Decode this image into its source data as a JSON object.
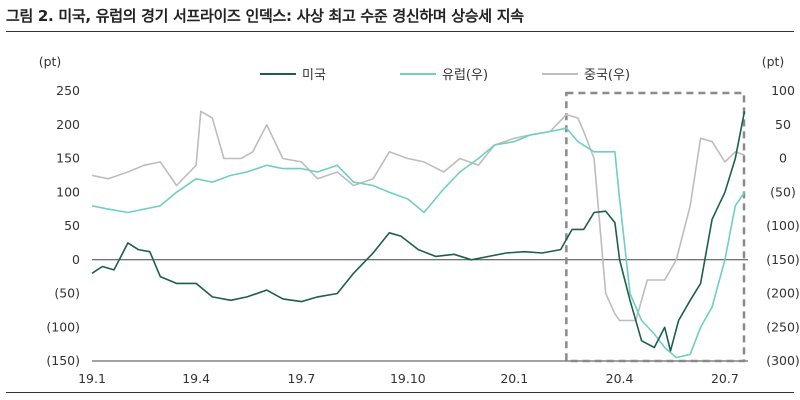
{
  "title": "그림 2. 미국, 유럽의 경기 서프라이즈 인덱스: 사상 최고 수준 경신하며 상승세 지속",
  "chart_data": {
    "type": "line",
    "y_left_unit": "(pt)",
    "y_right_unit": "(pt)",
    "x_ticks": [
      "19.1",
      "19.4",
      "19.7",
      "19.10",
      "20.1",
      "20.4",
      "20.7"
    ],
    "y_left_ticks": [
      "250",
      "200",
      "150",
      "100",
      "50",
      "0",
      "(50)",
      "(100)",
      "(150)"
    ],
    "y_right_ticks": [
      "100",
      "50",
      "0",
      "(50)",
      "(100)",
      "(150)",
      "(200)",
      "(250)",
      "(300)"
    ],
    "y_left_range": [
      -150,
      250
    ],
    "y_right_range": [
      -300,
      100
    ],
    "x_range": [
      "2019-01-01",
      "2020-07-21"
    ],
    "grid": false,
    "legend_position": "top",
    "highlight_box": {
      "x_from": "2020-02-15",
      "x_to": "2020-07-21",
      "style": "dashed"
    },
    "series": [
      {
        "name": "미국",
        "axis": "left",
        "color": "#1d5f4f",
        "points": [
          [
            "2019-01-01",
            -20
          ],
          [
            "2019-01-10",
            -10
          ],
          [
            "2019-01-20",
            -15
          ],
          [
            "2019-02-01",
            25
          ],
          [
            "2019-02-10",
            15
          ],
          [
            "2019-02-20",
            12
          ],
          [
            "2019-03-01",
            -25
          ],
          [
            "2019-03-15",
            -35
          ],
          [
            "2019-04-01",
            -35
          ],
          [
            "2019-04-15",
            -55
          ],
          [
            "2019-05-01",
            -60
          ],
          [
            "2019-05-15",
            -55
          ],
          [
            "2019-06-01",
            -45
          ],
          [
            "2019-06-15",
            -58
          ],
          [
            "2019-07-01",
            -62
          ],
          [
            "2019-07-15",
            -55
          ],
          [
            "2019-08-01",
            -50
          ],
          [
            "2019-08-15",
            -20
          ],
          [
            "2019-09-01",
            10
          ],
          [
            "2019-09-15",
            40
          ],
          [
            "2019-09-25",
            35
          ],
          [
            "2019-10-10",
            15
          ],
          [
            "2019-10-25",
            5
          ],
          [
            "2019-11-10",
            8
          ],
          [
            "2019-11-25",
            0
          ],
          [
            "2019-12-10",
            5
          ],
          [
            "2019-12-25",
            10
          ],
          [
            "2020-01-10",
            12
          ],
          [
            "2020-01-25",
            10
          ],
          [
            "2020-02-10",
            15
          ],
          [
            "2020-02-20",
            45
          ],
          [
            "2020-03-01",
            45
          ],
          [
            "2020-03-10",
            70
          ],
          [
            "2020-03-20",
            72
          ],
          [
            "2020-03-28",
            55
          ],
          [
            "2020-04-01",
            0
          ],
          [
            "2020-04-10",
            -60
          ],
          [
            "2020-04-20",
            -120
          ],
          [
            "2020-05-01",
            -130
          ],
          [
            "2020-05-10",
            -100
          ],
          [
            "2020-05-15",
            -135
          ],
          [
            "2020-05-22",
            -90
          ],
          [
            "2020-06-01",
            -60
          ],
          [
            "2020-06-10",
            -35
          ],
          [
            "2020-06-20",
            60
          ],
          [
            "2020-07-01",
            100
          ],
          [
            "2020-07-10",
            150
          ],
          [
            "2020-07-18",
            220
          ]
        ]
      },
      {
        "name": "유럽(우)",
        "axis": "right",
        "color": "#6fcfc3",
        "points": [
          [
            "2019-01-01",
            -70
          ],
          [
            "2019-01-15",
            -75
          ],
          [
            "2019-02-01",
            -80
          ],
          [
            "2019-02-15",
            -75
          ],
          [
            "2019-03-01",
            -70
          ],
          [
            "2019-03-15",
            -50
          ],
          [
            "2019-04-01",
            -30
          ],
          [
            "2019-04-15",
            -35
          ],
          [
            "2019-05-01",
            -25
          ],
          [
            "2019-05-15",
            -20
          ],
          [
            "2019-06-01",
            -10
          ],
          [
            "2019-06-15",
            -15
          ],
          [
            "2019-07-01",
            -15
          ],
          [
            "2019-07-15",
            -20
          ],
          [
            "2019-08-01",
            -10
          ],
          [
            "2019-08-15",
            -35
          ],
          [
            "2019-09-01",
            -40
          ],
          [
            "2019-09-15",
            -50
          ],
          [
            "2019-10-01",
            -60
          ],
          [
            "2019-10-15",
            -80
          ],
          [
            "2019-11-01",
            -45
          ],
          [
            "2019-11-15",
            -20
          ],
          [
            "2019-12-01",
            0
          ],
          [
            "2019-12-15",
            20
          ],
          [
            "2020-01-01",
            25
          ],
          [
            "2020-01-15",
            35
          ],
          [
            "2020-02-01",
            40
          ],
          [
            "2020-02-15",
            45
          ],
          [
            "2020-02-25",
            25
          ],
          [
            "2020-03-10",
            10
          ],
          [
            "2020-03-20",
            10
          ],
          [
            "2020-03-28",
            10
          ],
          [
            "2020-04-01",
            -60
          ],
          [
            "2020-04-10",
            -200
          ],
          [
            "2020-04-20",
            -240
          ],
          [
            "2020-05-01",
            -260
          ],
          [
            "2020-05-10",
            -280
          ],
          [
            "2020-05-20",
            -295
          ],
          [
            "2020-06-01",
            -290
          ],
          [
            "2020-06-10",
            -250
          ],
          [
            "2020-06-20",
            -220
          ],
          [
            "2020-07-01",
            -150
          ],
          [
            "2020-07-10",
            -70
          ],
          [
            "2020-07-18",
            -50
          ]
        ]
      },
      {
        "name": "중국(우)",
        "axis": "right",
        "color": "#bdbdbd",
        "points": [
          [
            "2019-01-01",
            -25
          ],
          [
            "2019-01-15",
            -30
          ],
          [
            "2019-02-01",
            -20
          ],
          [
            "2019-02-15",
            -10
          ],
          [
            "2019-03-01",
            -5
          ],
          [
            "2019-03-15",
            -40
          ],
          [
            "2019-04-01",
            -10
          ],
          [
            "2019-04-05",
            70
          ],
          [
            "2019-04-15",
            60
          ],
          [
            "2019-04-25",
            0
          ],
          [
            "2019-05-10",
            0
          ],
          [
            "2019-05-20",
            10
          ],
          [
            "2019-06-01",
            50
          ],
          [
            "2019-06-15",
            0
          ],
          [
            "2019-07-01",
            -5
          ],
          [
            "2019-07-15",
            -30
          ],
          [
            "2019-08-01",
            -20
          ],
          [
            "2019-08-15",
            -40
          ],
          [
            "2019-09-01",
            -30
          ],
          [
            "2019-09-15",
            10
          ],
          [
            "2019-10-01",
            0
          ],
          [
            "2019-10-15",
            -5
          ],
          [
            "2019-11-01",
            -20
          ],
          [
            "2019-11-15",
            0
          ],
          [
            "2019-12-01",
            -10
          ],
          [
            "2019-12-15",
            20
          ],
          [
            "2020-01-01",
            30
          ],
          [
            "2020-01-15",
            35
          ],
          [
            "2020-02-01",
            40
          ],
          [
            "2020-02-15",
            65
          ],
          [
            "2020-02-25",
            60
          ],
          [
            "2020-03-01",
            40
          ],
          [
            "2020-03-10",
            0
          ],
          [
            "2020-03-20",
            -200
          ],
          [
            "2020-03-28",
            -230
          ],
          [
            "2020-04-01",
            -240
          ],
          [
            "2020-04-15",
            -240
          ],
          [
            "2020-04-25",
            -180
          ],
          [
            "2020-05-10",
            -180
          ],
          [
            "2020-05-20",
            -150
          ],
          [
            "2020-06-01",
            -70
          ],
          [
            "2020-06-10",
            30
          ],
          [
            "2020-06-20",
            25
          ],
          [
            "2020-07-01",
            -5
          ],
          [
            "2020-07-10",
            10
          ],
          [
            "2020-07-18",
            5
          ]
        ]
      }
    ]
  }
}
